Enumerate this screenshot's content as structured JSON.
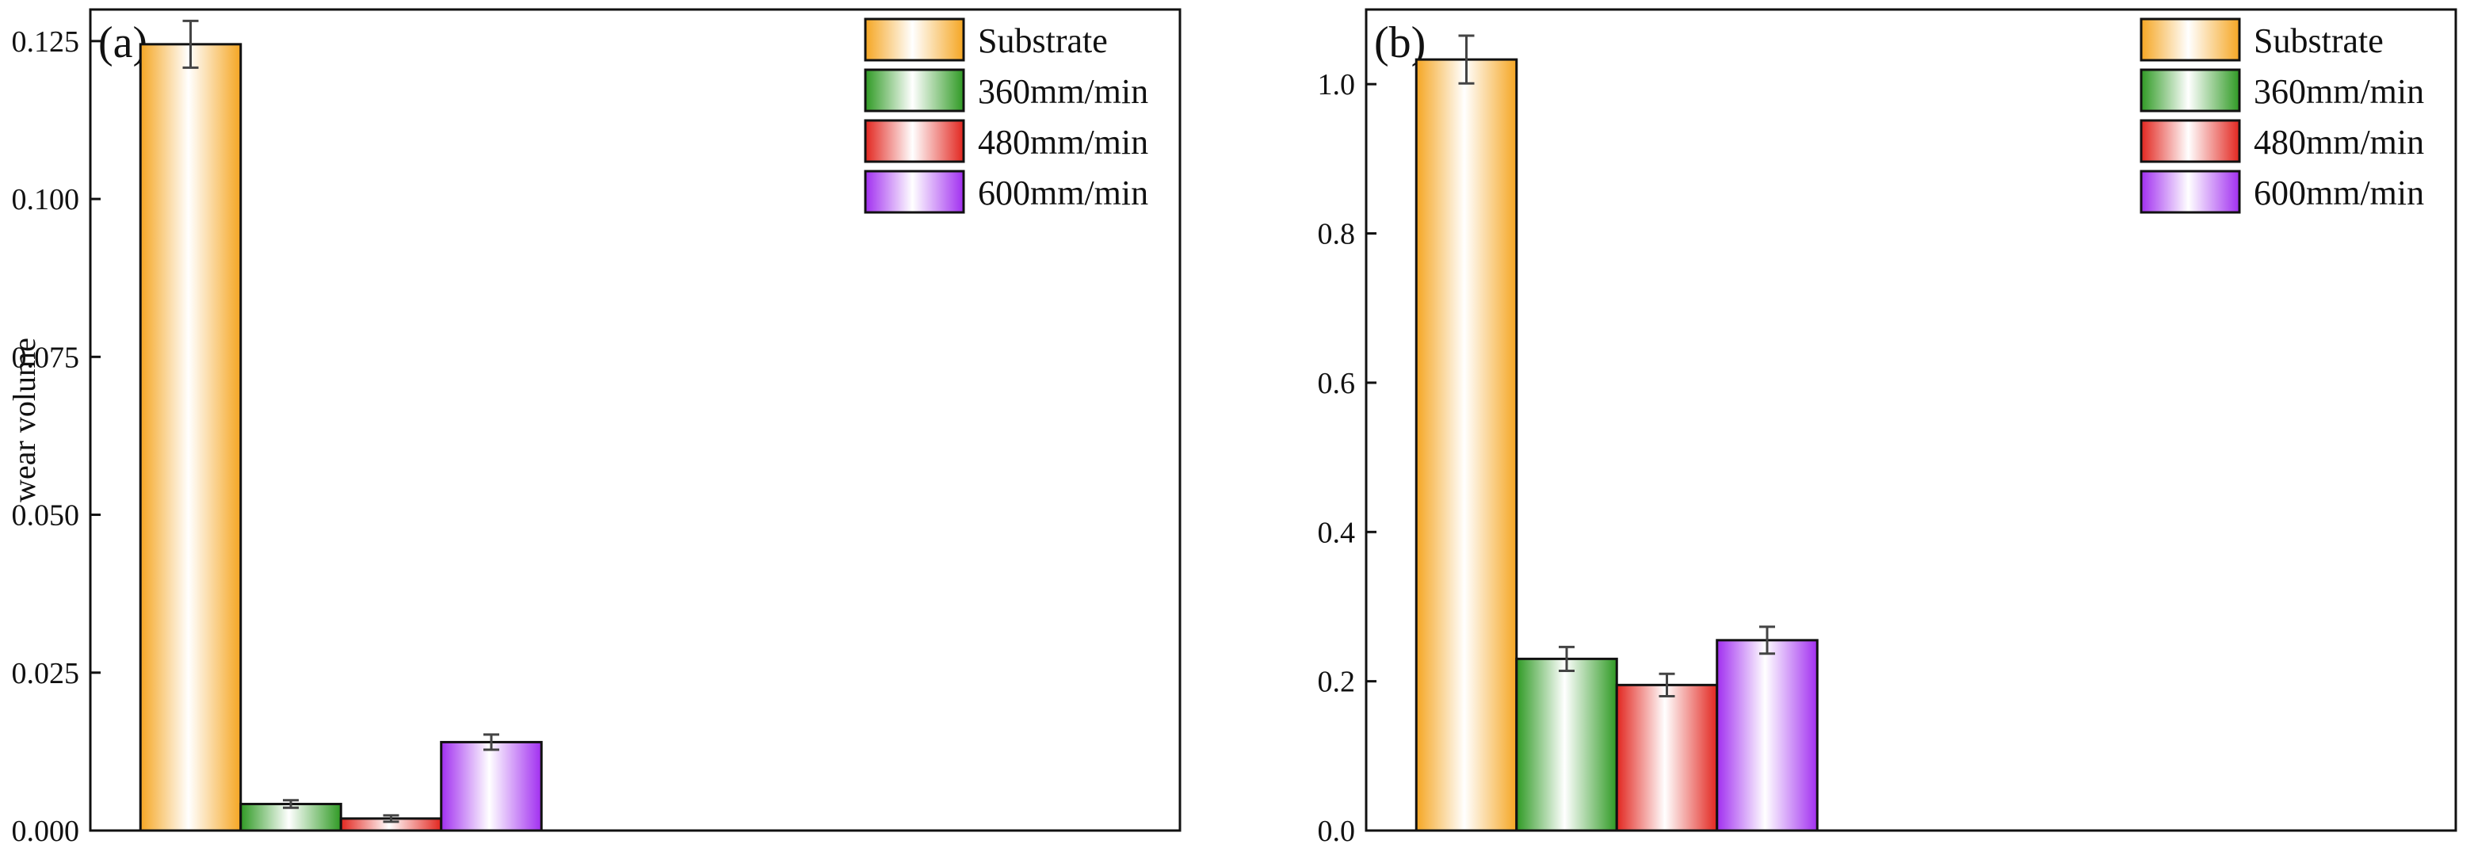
{
  "figure": {
    "panels_count": 2
  },
  "legend_labels": [
    "Substrate",
    "360mm/min",
    "480mm/min",
    "600mm/min"
  ],
  "series_colors": {
    "Substrate": "#f5a623",
    "360mm/min": "#2f9a24",
    "480mm/min": "#e2261f",
    "600mm/min": "#a12ff0"
  },
  "chart_data": [
    {
      "type": "bar",
      "panel_label": "(a)",
      "title": "",
      "xlabel": "",
      "ylabel": "wear volume",
      "ylim": [
        0,
        0.13
      ],
      "yticks": [
        0.0,
        0.025,
        0.05,
        0.075,
        0.1,
        0.125
      ],
      "ytick_labels": [
        "0.000",
        "0.025",
        "0.050",
        "0.075",
        "0.100",
        "0.125"
      ],
      "categories": [
        "Substrate",
        "360mm/min",
        "480mm/min",
        "600mm/min"
      ],
      "values": [
        0.1245,
        0.0042,
        0.0019,
        0.014
      ],
      "errors": [
        0.0037,
        0.0006,
        0.0005,
        0.0012
      ],
      "legend_position": "top-right",
      "grid": false
    },
    {
      "type": "bar",
      "panel_label": "(b)",
      "title": "",
      "xlabel": "",
      "ylabel": "",
      "ylim": [
        0,
        1.1
      ],
      "yticks": [
        0.0,
        0.2,
        0.4,
        0.6,
        0.8,
        1.0
      ],
      "ytick_labels": [
        "0.0",
        "0.2",
        "0.4",
        "0.6",
        "0.8",
        "1.0"
      ],
      "categories": [
        "Substrate",
        "360mm/min",
        "480mm/min",
        "600mm/min"
      ],
      "values": [
        1.033,
        0.23,
        0.195,
        0.255
      ],
      "errors": [
        0.032,
        0.016,
        0.015,
        0.018
      ],
      "legend_position": "top-right",
      "grid": false
    }
  ]
}
